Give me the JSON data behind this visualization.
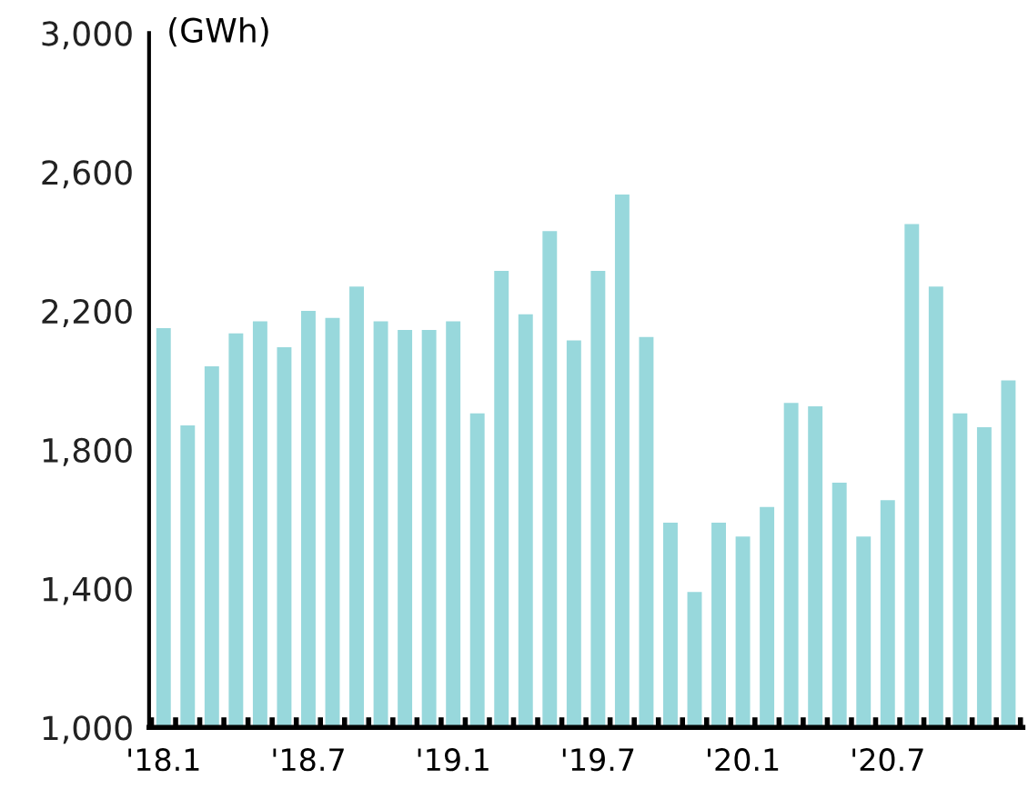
{
  "chart_data": {
    "type": "bar",
    "ylabel": "(GWh)",
    "categories": [
      "'18.1",
      null,
      null,
      null,
      null,
      null,
      "'18.7",
      null,
      null,
      null,
      null,
      null,
      "'19.1",
      null,
      null,
      null,
      null,
      null,
      "'19.7",
      null,
      null,
      null,
      null,
      null,
      "'20.1",
      null,
      null,
      null,
      null,
      null,
      "'20.7",
      null,
      null,
      null,
      null,
      null
    ],
    "values": [
      2150,
      1870,
      2040,
      2135,
      2170,
      2095,
      2200,
      2180,
      2270,
      2170,
      2145,
      2145,
      2170,
      1905,
      2315,
      2190,
      2430,
      2115,
      2315,
      2535,
      2125,
      1590,
      1390,
      1590,
      1550,
      1635,
      1935,
      1925,
      1705,
      1550,
      1655,
      2450,
      2270,
      1905,
      1865,
      2000
    ],
    "color": "#98d8dc",
    "ylim": [
      1000,
      3000
    ],
    "yticks": [
      {
        "value": 1000,
        "label": "1,000"
      },
      {
        "value": 1400,
        "label": "1,400"
      },
      {
        "value": 1800,
        "label": "1,800"
      },
      {
        "value": 2200,
        "label": "2,200"
      },
      {
        "value": 2600,
        "label": "2,600"
      },
      {
        "value": 3000,
        "label": "3,000"
      }
    ],
    "grid": false,
    "legend": false
  }
}
